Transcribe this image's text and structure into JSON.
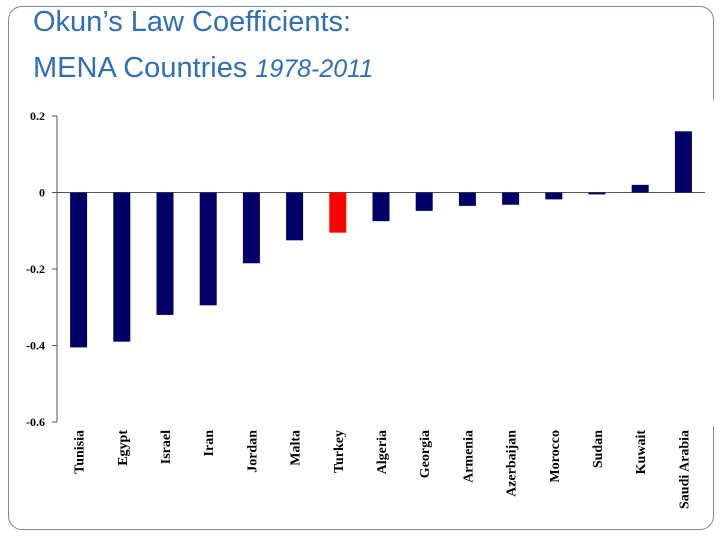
{
  "title_line1": "Okun’s Law Coefficients:",
  "title_line2_main": "MENA Countries",
  "title_line2_years": "1978-2011",
  "chart_data": {
    "type": "bar",
    "title": "",
    "xlabel": "",
    "ylabel": "",
    "ylim": [
      -0.6,
      0.2
    ],
    "yticks": [
      0.2,
      0,
      -0.2,
      -0.4,
      -0.6
    ],
    "ytick_labels": [
      "0.2",
      "0",
      "-0.2",
      "-0.4",
      "-0.6"
    ],
    "grid": false,
    "legend": "none",
    "categories": [
      "Tunisia",
      "Egypt",
      "Israel",
      "Iran",
      "Jordan",
      "Malta",
      "Turkey",
      "Algeria",
      "Georgia",
      "Armenia",
      "Azerbaijan",
      "Morocco",
      "Sudan",
      "Kuwait",
      "Saudi Arabia"
    ],
    "values": [
      -0.405,
      -0.39,
      -0.32,
      -0.295,
      -0.185,
      -0.125,
      -0.105,
      -0.075,
      -0.048,
      -0.035,
      -0.032,
      -0.018,
      -0.005,
      0.02,
      0.16
    ],
    "colors": {
      "default": "#000066",
      "highlight": "#ff0000",
      "highlight_category": "Turkey"
    }
  }
}
